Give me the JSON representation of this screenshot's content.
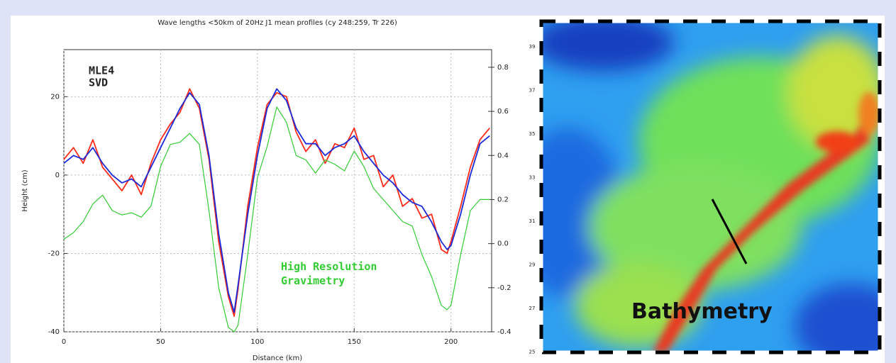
{
  "chart_data": {
    "type": "line",
    "title": "Wave lengths <50km of 20Hz J1 mean profiles (cy 248:259, Tr 226)",
    "x_label": "Distance (km)",
    "y_label": "Height (cm)",
    "xlim": [
      0,
      221
    ],
    "xticks": [
      0,
      50,
      100,
      150,
      200
    ],
    "ylim": [
      -40,
      32
    ],
    "yticks": [
      -40,
      -20,
      0,
      20
    ],
    "y2lim": [
      -0.4,
      0.88
    ],
    "y2ticks": [
      -0.4,
      -0.2,
      {
        "value": 0,
        "label": "0.0"
      },
      0.2,
      0.4,
      0.6,
      0.8
    ],
    "grid": true,
    "x": [
      0,
      5,
      10,
      15,
      20,
      25,
      30,
      35,
      40,
      45,
      50,
      55,
      60,
      65,
      70,
      75,
      80,
      85,
      88,
      90,
      95,
      100,
      105,
      110,
      115,
      120,
      125,
      130,
      135,
      140,
      145,
      150,
      155,
      160,
      165,
      170,
      175,
      180,
      185,
      190,
      195,
      198,
      200,
      205,
      210,
      215,
      220
    ],
    "series": [
      {
        "name": "MLE4",
        "color": "#ff2a1a",
        "values": [
          4,
          7,
          3,
          9,
          2,
          -1,
          -4,
          0,
          -5,
          3,
          9,
          13,
          16,
          22,
          17,
          4,
          -17,
          -31,
          -36,
          -29,
          -8,
          7,
          18,
          21,
          20,
          11,
          6,
          9,
          3,
          8,
          7,
          12,
          4,
          5,
          -3,
          0,
          -8,
          -6,
          -11,
          -10,
          -19,
          -20,
          -17,
          -8,
          2,
          9,
          12
        ]
      },
      {
        "name": "SVD",
        "color": "#1a2ad8",
        "values": [
          3,
          5,
          4,
          7,
          3,
          0,
          -2,
          -1,
          -3,
          2,
          7,
          12,
          17,
          21,
          18,
          5,
          -15,
          -30,
          -35,
          -28,
          -10,
          5,
          17,
          22,
          19,
          12,
          8,
          8,
          5,
          7,
          8,
          10,
          6,
          3,
          0,
          -2,
          -5,
          -7,
          -8,
          -12,
          -17,
          -19,
          -18,
          -10,
          0,
          8,
          10
        ]
      },
      {
        "name": "High Resolution Gravimetry",
        "color": "#33cc33",
        "axis": "y2",
        "values": [
          0.02,
          0.05,
          0.1,
          0.18,
          0.22,
          0.15,
          0.13,
          0.14,
          0.12,
          0.17,
          0.35,
          0.45,
          0.46,
          0.5,
          0.45,
          0.15,
          -0.2,
          -0.38,
          -0.4,
          -0.37,
          -0.05,
          0.3,
          0.44,
          0.62,
          0.55,
          0.4,
          0.38,
          0.32,
          0.38,
          0.36,
          0.33,
          0.42,
          0.35,
          0.25,
          0.2,
          0.15,
          0.1,
          0.08,
          -0.05,
          -0.15,
          -0.28,
          -0.3,
          -0.28,
          -0.05,
          0.15,
          0.2,
          0.2
        ]
      }
    ]
  },
  "map": {
    "label": "Bathymetry",
    "yticks": [
      "39",
      "37",
      "35",
      "33",
      "31",
      "29",
      "27",
      "25"
    ]
  }
}
